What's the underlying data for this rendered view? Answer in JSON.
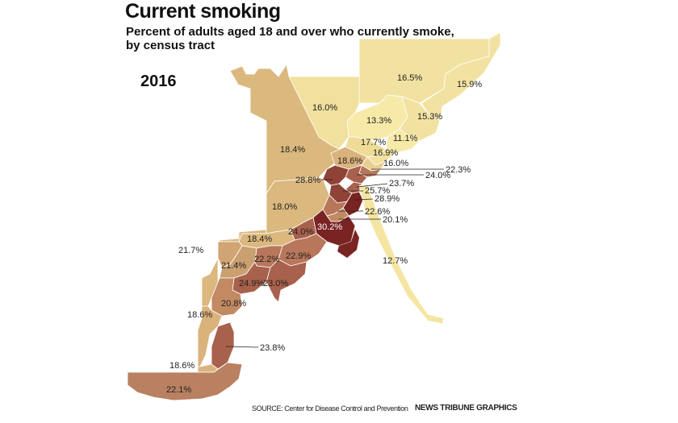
{
  "header": {
    "title": "Current smoking",
    "subtitle": "Percent of adults aged 18 and over who currently smoke, by census tract",
    "year": "2016"
  },
  "footer": {
    "source": "SOURCE: Center for Disease Control and Prevention",
    "credit": "NEWS TRIBUNE GRAPHICS"
  },
  "colors": {
    "lowest": "#f7e9a8",
    "low": "#eedb95",
    "mid_low": "#e2c486",
    "mid": "#d4a974",
    "mid_high": "#c28a63",
    "high": "#a8614c",
    "higher": "#8f4236",
    "highest": "#7a2323"
  },
  "tracts": [
    {
      "id": "t1",
      "value": "16.5%"
    },
    {
      "id": "t2",
      "value": "15.9%"
    },
    {
      "id": "t3",
      "value": "16.0%"
    },
    {
      "id": "t4",
      "value": "13.3%"
    },
    {
      "id": "t5",
      "value": "15.3%"
    },
    {
      "id": "t6",
      "value": "11.1%"
    },
    {
      "id": "t7",
      "value": "17.7%"
    },
    {
      "id": "t8",
      "value": "16.9%"
    },
    {
      "id": "t9",
      "value": "18.4%"
    },
    {
      "id": "t10",
      "value": "18.6%"
    },
    {
      "id": "t11",
      "value": "16.0%"
    },
    {
      "id": "t12",
      "value": "22.3%"
    },
    {
      "id": "t13",
      "value": "24.0%"
    },
    {
      "id": "t14",
      "value": "28.8%"
    },
    {
      "id": "t15",
      "value": "23.7%"
    },
    {
      "id": "t16",
      "value": "25.7%"
    },
    {
      "id": "t17",
      "value": "28.9%"
    },
    {
      "id": "t18",
      "value": "18.0%"
    },
    {
      "id": "t19",
      "value": "22.6%"
    },
    {
      "id": "t20",
      "value": "20.1%"
    },
    {
      "id": "t21",
      "value": "30.2%"
    },
    {
      "id": "t22",
      "value": "24.0%"
    },
    {
      "id": "t23",
      "value": "18.4%"
    },
    {
      "id": "t24",
      "value": "12.7%"
    },
    {
      "id": "t25",
      "value": "21.7%"
    },
    {
      "id": "t26",
      "value": "21.4%"
    },
    {
      "id": "t27",
      "value": "22.2%"
    },
    {
      "id": "t28",
      "value": "22.9%"
    },
    {
      "id": "t29",
      "value": "24.9%"
    },
    {
      "id": "t30",
      "value": "23.0%"
    },
    {
      "id": "t31",
      "value": "20.8%"
    },
    {
      "id": "t32",
      "value": "18.6%"
    },
    {
      "id": "t33",
      "value": "23.8%"
    },
    {
      "id": "t34",
      "value": "18.6%"
    },
    {
      "id": "t35",
      "value": "22.1%"
    }
  ]
}
